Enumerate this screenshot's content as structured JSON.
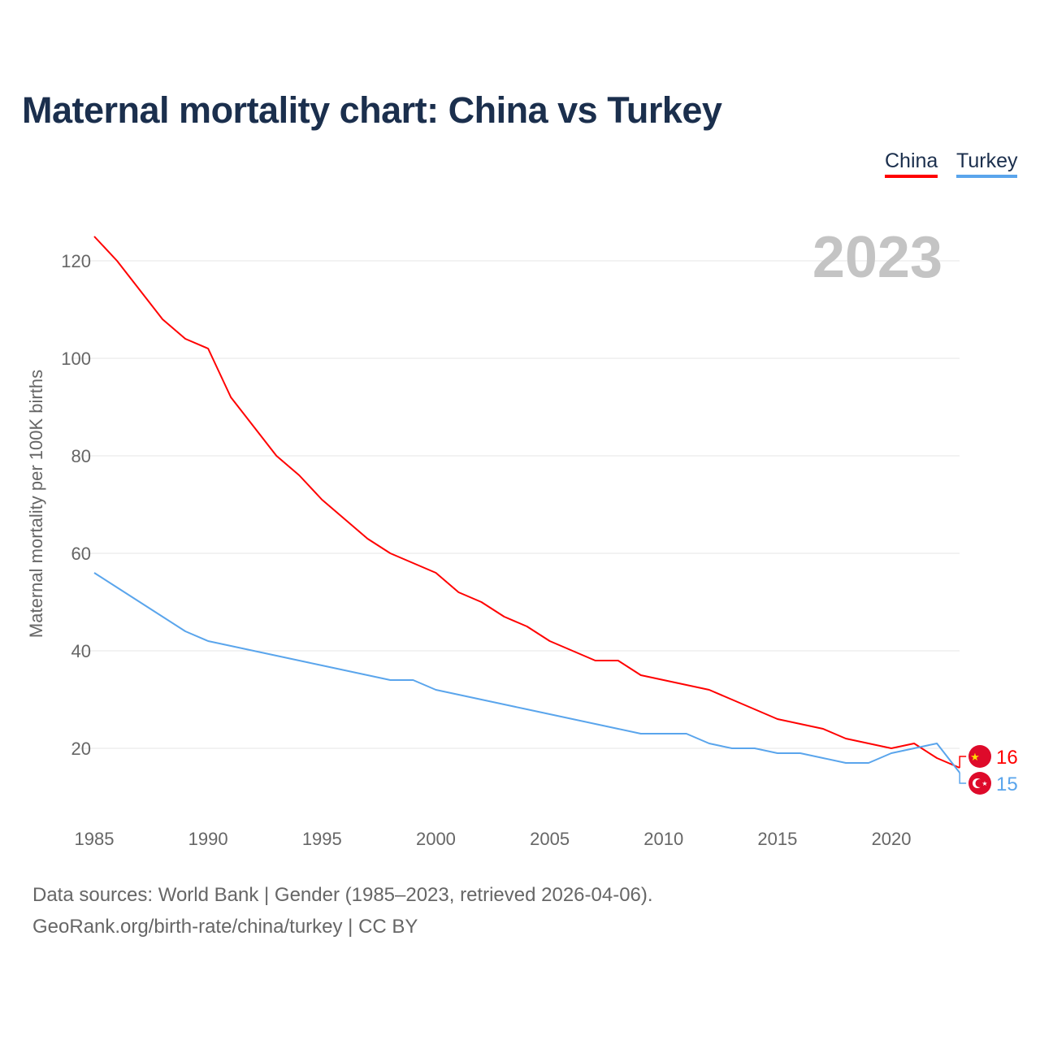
{
  "title": "Maternal mortality chart: China vs Turkey",
  "footer": {
    "line1": "Data sources: World Bank | Gender (1985–2023, retrieved 2026-04-06).",
    "line2": "GeoRank.org/birth-rate/china/turkey | CC BY"
  },
  "chart_data": {
    "type": "line",
    "title": "Maternal mortality chart: China vs Turkey",
    "ylabel": "Maternal mortality per 100K births",
    "xlabel": "",
    "year_label": "2023",
    "ylim": [
      0,
      130
    ],
    "xlim": [
      1985,
      2023
    ],
    "yticks": [
      20,
      40,
      60,
      80,
      100,
      120
    ],
    "xticks": [
      1985,
      1990,
      1995,
      2000,
      2005,
      2010,
      2015,
      2020
    ],
    "legend_position": "top-right",
    "x": [
      1985,
      1986,
      1987,
      1988,
      1989,
      1990,
      1991,
      1992,
      1993,
      1994,
      1995,
      1996,
      1997,
      1998,
      1999,
      2000,
      2001,
      2002,
      2003,
      2004,
      2005,
      2006,
      2007,
      2008,
      2009,
      2010,
      2011,
      2012,
      2013,
      2014,
      2015,
      2016,
      2017,
      2018,
      2019,
      2020,
      2021,
      2022,
      2023
    ],
    "series": [
      {
        "name": "China",
        "color": "#ff0000",
        "end_label": "16",
        "values": [
          125,
          120,
          114,
          108,
          104,
          102,
          92,
          86,
          80,
          76,
          71,
          67,
          63,
          60,
          58,
          56,
          52,
          50,
          47,
          45,
          42,
          40,
          38,
          38,
          35,
          34,
          33,
          32,
          30,
          28,
          26,
          25,
          24,
          22,
          21,
          20,
          21,
          18,
          16
        ]
      },
      {
        "name": "Turkey",
        "color": "#5aa5ec",
        "end_label": "15",
        "values": [
          56,
          53,
          50,
          47,
          44,
          42,
          41,
          40,
          39,
          38,
          37,
          36,
          35,
          34,
          34,
          32,
          31,
          30,
          29,
          28,
          27,
          26,
          25,
          24,
          23,
          23,
          23,
          21,
          20,
          20,
          19,
          19,
          18,
          17,
          17,
          19,
          20,
          21,
          15
        ]
      }
    ]
  }
}
